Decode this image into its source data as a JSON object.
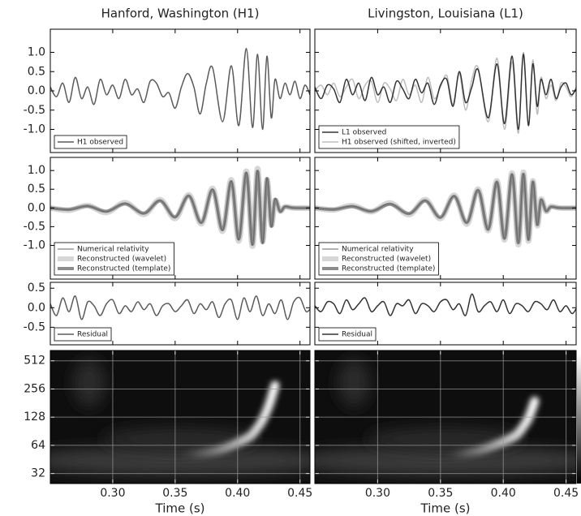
{
  "chart_data": [
    {
      "type": "line",
      "title": "Hanford, Washington (H1)",
      "xlim": [
        0.25,
        0.458
      ],
      "ylim": [
        -1.6,
        1.6
      ],
      "yticks": [
        {
          "value": 1,
          "label": "1.0"
        },
        0.5,
        {
          "value": 0,
          "label": "0.0"
        },
        -0.5,
        {
          "value": -1,
          "label": "-1.0"
        }
      ],
      "legend": "lower left",
      "x": [
        0.25,
        0.255,
        0.26,
        0.265,
        0.27,
        0.275,
        0.28,
        0.285,
        0.29,
        0.295,
        0.3,
        0.305,
        0.31,
        0.315,
        0.32,
        0.325,
        0.33,
        0.335,
        0.34,
        0.345,
        0.35,
        0.355,
        0.36,
        0.365,
        0.37,
        0.375,
        0.38,
        0.388,
        0.395,
        0.401,
        0.407,
        0.412,
        0.416,
        0.42,
        0.4235,
        0.427,
        0.43,
        0.434,
        0.438,
        0.442,
        0.446,
        0.45,
        0.454,
        0.458
      ],
      "series": [
        {
          "name": "H1 observed",
          "color": "#5a5a5a",
          "linewidth": 1.5,
          "values": [
            0.1,
            -0.15,
            0.2,
            -0.3,
            0.35,
            -0.2,
            0.1,
            -0.35,
            0.3,
            -0.1,
            0.15,
            -0.2,
            0.3,
            -0.1,
            0.05,
            -0.3,
            0.25,
            0.2,
            -0.15,
            -0.05,
            -0.45,
            0.1,
            0.45,
            0.1,
            -0.6,
            0.2,
            0.6,
            -0.8,
            0.65,
            -0.9,
            1.1,
            -0.95,
            0.95,
            -1.0,
            0.9,
            -0.7,
            0.3,
            -0.2,
            0.2,
            -0.1,
            0.25,
            -0.2,
            0.15,
            -0.1
          ]
        }
      ]
    },
    {
      "type": "line",
      "title": "Livingston, Louisiana (L1)",
      "xlim": [
        0.25,
        0.458
      ],
      "ylim": [
        -1.6,
        1.6
      ],
      "legend": "lower left",
      "x": [
        0.25,
        0.255,
        0.26,
        0.265,
        0.27,
        0.275,
        0.28,
        0.285,
        0.29,
        0.295,
        0.3,
        0.305,
        0.31,
        0.315,
        0.32,
        0.325,
        0.33,
        0.335,
        0.34,
        0.345,
        0.35,
        0.355,
        0.36,
        0.365,
        0.37,
        0.375,
        0.38,
        0.388,
        0.395,
        0.401,
        0.407,
        0.412,
        0.416,
        0.42,
        0.4235,
        0.427,
        0.43,
        0.434,
        0.438,
        0.442,
        0.446,
        0.45,
        0.454,
        0.458
      ],
      "series": [
        {
          "name": "H1 observed (shifted, inverted)",
          "color": "#bdbdbd",
          "linewidth": 1.5,
          "values": [
            0.0,
            0.15,
            -0.1,
            0.2,
            -0.15,
            0.1,
            0.3,
            -0.2,
            0.15,
            0.25,
            -0.3,
            0.2,
            0.05,
            -0.25,
            0.3,
            -0.1,
            0.15,
            -0.3,
            0.35,
            -0.2,
            0.1,
            0.4,
            -0.35,
            0.45,
            -0.5,
            0.3,
            0.6,
            -0.8,
            0.85,
            -1.0,
            0.75,
            -1.1,
            1.0,
            -0.9,
            0.8,
            -0.6,
            0.35,
            -0.2,
            0.15,
            -0.25,
            0.2,
            0.1,
            -0.15,
            0.1
          ]
        },
        {
          "name": "L1 observed",
          "color": "#333333",
          "linewidth": 1.5,
          "values": [
            0.1,
            -0.2,
            0.15,
            0.05,
            -0.3,
            0.3,
            -0.1,
            0.2,
            -0.25,
            0.35,
            -0.1,
            0.1,
            -0.3,
            0.25,
            0.05,
            -0.2,
            0.3,
            -0.05,
            0.2,
            -0.35,
            0.15,
            0.3,
            -0.4,
            0.5,
            -0.3,
            0.1,
            0.55,
            -0.7,
            0.7,
            -0.85,
            0.9,
            -1.0,
            0.95,
            -0.9,
            0.7,
            -0.4,
            0.3,
            -0.1,
            0.3,
            -0.2,
            0.1,
            0.2,
            -0.1,
            0.05
          ]
        }
      ],
      "legend_order": [
        1,
        0
      ]
    },
    {
      "type": "line",
      "xlim": [
        0.25,
        0.458
      ],
      "ylim": [
        -1.9,
        1.35
      ],
      "yticks": [
        {
          "value": 1,
          "label": "1.0"
        },
        0.5,
        {
          "value": 0,
          "label": "0.0"
        },
        -0.5,
        {
          "value": -1,
          "label": "-1.0"
        }
      ],
      "legend": "lower left",
      "x": [
        0.25,
        0.265,
        0.28,
        0.295,
        0.31,
        0.325,
        0.338,
        0.35,
        0.361,
        0.371,
        0.38,
        0.388,
        0.395,
        0.401,
        0.407,
        0.412,
        0.416,
        0.42,
        0.4235,
        0.427,
        0.43,
        0.434,
        0.438,
        0.445,
        0.46
      ],
      "series": [
        {
          "name": "Reconstructed (wavelet)",
          "color": "#d6d6d6",
          "linewidth": 7,
          "values": [
            0.0,
            -0.06,
            0.06,
            -0.12,
            0.14,
            -0.17,
            0.22,
            -0.28,
            0.35,
            -0.42,
            0.52,
            -0.62,
            0.75,
            -0.88,
            0.98,
            -1.02,
            1.05,
            -0.9,
            0.75,
            -0.45,
            0.2,
            -0.08,
            0.03,
            0.0,
            0.0
          ]
        },
        {
          "name": "Reconstructed (template)",
          "color": "#8c8c8c",
          "linewidth": 4,
          "values": [
            0.0,
            -0.04,
            0.05,
            -0.09,
            0.11,
            -0.14,
            0.19,
            -0.24,
            0.32,
            -0.39,
            0.48,
            -0.58,
            0.7,
            -0.83,
            0.93,
            -0.97,
            0.98,
            -0.92,
            0.78,
            -0.48,
            0.22,
            -0.09,
            0.03,
            0.0,
            0.0
          ]
        },
        {
          "name": "Numerical relativity",
          "color": "#666666",
          "linewidth": 1,
          "values": [
            0,
            -0.05,
            0.05,
            -0.1,
            0.12,
            -0.15,
            0.2,
            -0.25,
            0.33,
            -0.4,
            0.5,
            -0.6,
            0.72,
            -0.85,
            0.95,
            -1.0,
            1.0,
            -0.95,
            0.8,
            -0.5,
            0.25,
            -0.1,
            0.04,
            0,
            0
          ]
        }
      ],
      "legend_order": [
        2,
        0,
        1
      ]
    },
    {
      "type": "line",
      "xlim": [
        0.25,
        0.458
      ],
      "ylim": [
        -1.9,
        1.35
      ],
      "legend": "lower left",
      "x": [
        0.25,
        0.265,
        0.28,
        0.295,
        0.31,
        0.325,
        0.338,
        0.35,
        0.361,
        0.371,
        0.38,
        0.388,
        0.395,
        0.401,
        0.407,
        0.412,
        0.416,
        0.42,
        0.4235,
        0.427,
        0.43,
        0.434,
        0.438,
        0.445,
        0.46
      ],
      "series": [
        {
          "name": "Reconstructed (wavelet)",
          "color": "#d6d6d6",
          "linewidth": 7,
          "values": [
            0,
            -0.05,
            0.06,
            -0.1,
            0.13,
            -0.18,
            0.22,
            -0.28,
            0.34,
            -0.43,
            0.5,
            -0.6,
            0.72,
            -0.85,
            0.93,
            -0.98,
            0.95,
            -0.88,
            0.72,
            -0.47,
            0.23,
            -0.09,
            0.04,
            0,
            0
          ]
        },
        {
          "name": "Reconstructed (template)",
          "color": "#8c8c8c",
          "linewidth": 4,
          "values": [
            0,
            -0.04,
            0.04,
            -0.09,
            0.1,
            -0.15,
            0.19,
            -0.25,
            0.31,
            -0.39,
            0.47,
            -0.57,
            0.69,
            -0.81,
            0.89,
            -0.93,
            0.9,
            -0.84,
            0.69,
            -0.44,
            0.21,
            -0.08,
            0.03,
            0,
            0
          ]
        },
        {
          "name": "Numerical relativity",
          "color": "#666666",
          "linewidth": 1,
          "values": [
            0,
            -0.04,
            0.05,
            -0.09,
            0.11,
            -0.16,
            0.2,
            -0.26,
            0.32,
            -0.4,
            0.48,
            -0.58,
            0.7,
            -0.82,
            0.9,
            -0.95,
            0.92,
            -0.85,
            0.7,
            -0.45,
            0.22,
            -0.08,
            0.03,
            0,
            0
          ]
        }
      ],
      "legend_order": [
        2,
        0,
        1
      ]
    },
    {
      "type": "line",
      "xlim": [
        0.25,
        0.458
      ],
      "ylim": [
        -0.95,
        0.65
      ],
      "yticks": [
        0.5,
        {
          "value": 0,
          "label": "0.0"
        },
        -0.5
      ],
      "legend": "lower left",
      "x": [
        0.25,
        0.255,
        0.26,
        0.265,
        0.27,
        0.275,
        0.28,
        0.285,
        0.29,
        0.295,
        0.3,
        0.305,
        0.31,
        0.315,
        0.32,
        0.325,
        0.33,
        0.335,
        0.34,
        0.345,
        0.35,
        0.355,
        0.36,
        0.365,
        0.37,
        0.375,
        0.38,
        0.385,
        0.39,
        0.395,
        0.4,
        0.405,
        0.41,
        0.415,
        0.42,
        0.425,
        0.43,
        0.435,
        0.44,
        0.445,
        0.45,
        0.455,
        0.46
      ],
      "series": [
        {
          "name": "Residual",
          "color": "#5a5a5a",
          "linewidth": 1.5,
          "values": [
            0.1,
            -0.2,
            0.25,
            -0.1,
            0.3,
            -0.3,
            0.15,
            0.05,
            -0.2,
            0.1,
            0.2,
            -0.15,
            0.05,
            -0.1,
            0.15,
            -0.05,
            0.1,
            -0.2,
            0.05,
            0.1,
            -0.1,
            0.05,
            0.2,
            -0.15,
            0.1,
            -0.05,
            0.15,
            -0.25,
            0.1,
            0.2,
            -0.3,
            0.25,
            -0.1,
            0.3,
            -0.2,
            0.1,
            -0.15,
            0.2,
            -0.3,
            0.15,
            0.25,
            -0.1,
            0.05
          ]
        }
      ]
    },
    {
      "type": "line",
      "xlim": [
        0.25,
        0.458
      ],
      "ylim": [
        -0.95,
        0.65
      ],
      "legend": "lower left",
      "x": [
        0.25,
        0.255,
        0.26,
        0.265,
        0.27,
        0.275,
        0.28,
        0.285,
        0.29,
        0.295,
        0.3,
        0.305,
        0.31,
        0.315,
        0.32,
        0.325,
        0.33,
        0.335,
        0.34,
        0.345,
        0.35,
        0.355,
        0.36,
        0.365,
        0.37,
        0.375,
        0.38,
        0.385,
        0.39,
        0.395,
        0.4,
        0.405,
        0.41,
        0.415,
        0.42,
        0.425,
        0.43,
        0.435,
        0.44,
        0.445,
        0.45,
        0.455,
        0.46
      ],
      "series": [
        {
          "name": "Residual",
          "color": "#333333",
          "linewidth": 1.5,
          "values": [
            0.05,
            -0.1,
            0.15,
            0.1,
            -0.15,
            0.2,
            -0.05,
            0.1,
            0.25,
            -0.1,
            0.05,
            0.15,
            -0.2,
            0.1,
            0.05,
            0.2,
            -0.15,
            0.1,
            0.05,
            -0.1,
            0.15,
            0.2,
            -0.05,
            0.1,
            -0.2,
            0.35,
            -0.1,
            0.05,
            0.15,
            -0.1,
            0.2,
            -0.15,
            0.1,
            0.05,
            -0.1,
            0.15,
            0.1,
            -0.05,
            0.2,
            -0.1,
            0.05,
            -0.15,
            0.1
          ]
        }
      ]
    },
    {
      "type": "spectrogram",
      "xlabel": "Time (s)",
      "xlim": [
        0.25,
        0.458
      ],
      "ylim": [
        25,
        660
      ],
      "log_y": true,
      "grid": true,
      "xticks": [
        {
          "value": 0.3,
          "label": "0.30"
        },
        0.35,
        {
          "value": 0.4,
          "label": "0.40"
        },
        0.45
      ],
      "yticks": [
        512,
        256,
        128,
        64,
        32
      ],
      "x": [
        0.36,
        0.38,
        0.39,
        0.4,
        0.41,
        0.415,
        0.42,
        0.425,
        0.43
      ],
      "values": [
        50,
        55,
        60,
        68,
        80,
        95,
        120,
        170,
        280
      ]
    },
    {
      "type": "spectrogram",
      "xlabel": "Time (s)",
      "xlim": [
        0.25,
        0.458
      ],
      "ylim": [
        25,
        660
      ],
      "log_y": true,
      "grid": true,
      "xticks": [
        {
          "value": 0.3,
          "label": "0.30"
        },
        0.35,
        {
          "value": 0.4,
          "label": "0.40"
        },
        0.45
      ],
      "x": [
        0.36,
        0.38,
        0.39,
        0.4,
        0.41,
        0.415,
        0.42,
        0.425
      ],
      "values": [
        50,
        56,
        62,
        70,
        82,
        98,
        125,
        190
      ]
    }
  ]
}
